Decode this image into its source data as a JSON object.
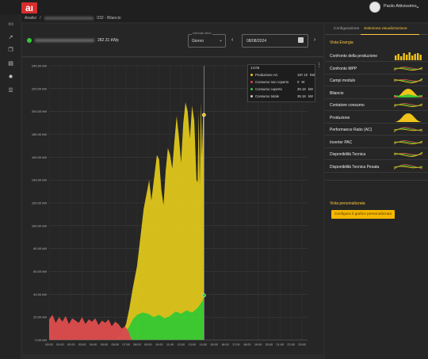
{
  "app": {
    "logo_text": "aı",
    "user_name": "Paolo Attivissimo"
  },
  "breadcrumb": {
    "root": "Analisi",
    "separator": "/",
    "current": "032 - Bilancio"
  },
  "plant": {
    "power": "282.31 kWp",
    "status_color": "#36c936"
  },
  "period_select": {
    "legend": "Intervallo attivo",
    "value": "Giorno"
  },
  "date": {
    "value": "08/08/2024"
  },
  "tabs": [
    {
      "label": "Configurazione",
      "active": false
    },
    {
      "label": "Seleziona visualizzazione",
      "active": true
    }
  ],
  "vista": {
    "title": "Vista Energia",
    "items": [
      {
        "label": "Confronto della produzione",
        "icon": "bar-spark-icon"
      },
      {
        "label": "Confronto MPP",
        "icon": "line-spark-icon"
      },
      {
        "label": "Campi modulo",
        "icon": "line-spark-icon"
      },
      {
        "label": "Bilancio",
        "icon": "area-spark-icon"
      },
      {
        "label": "Contatore consumo",
        "icon": "line-spark-icon"
      },
      {
        "label": "Produzione",
        "icon": "bell-spark-icon"
      },
      {
        "label": "Performance Ratio (AC)",
        "icon": "line-spark-icon"
      },
      {
        "label": "Inverter PAC",
        "icon": "line-spark-icon"
      },
      {
        "label": "Disponibilità Tecnica",
        "icon": "line-spark-icon"
      },
      {
        "label": "Disponibilità Tecnica Pesata",
        "icon": "line-spark-icon"
      }
    ]
  },
  "custom": {
    "title": "Vista personalizzata",
    "button": "Configura il grafico personalizzato"
  },
  "tooltip": {
    "time": "14:05",
    "rows": [
      {
        "label": "Produzione AC",
        "value": "197.10",
        "unit": "kW",
        "color": "#f0c419"
      },
      {
        "label": "Consumo non coperto",
        "value": "0",
        "unit": "W",
        "color": "#e04040"
      },
      {
        "label": "Consumo coperto",
        "value": "39.18",
        "unit": "kW",
        "color": "#3ac832"
      },
      {
        "label": "Consumo totale",
        "value": "39.18",
        "unit": "kW",
        "color": "#cccccc"
      }
    ]
  },
  "colors": {
    "production": "#d9c21c",
    "covered": "#3ac832",
    "uncovered": "#d94d4d",
    "accent": "#ffc83c"
  },
  "chart_data": {
    "type": "area",
    "y_ticks": [
      "0.00 kW",
      "20.00 kW",
      "40.00 kW",
      "60.00 kW",
      "80.00 kW",
      "100.00 kW",
      "120.00 kW",
      "140.00 kW",
      "160.00 kW",
      "180.00 kW",
      "200.00 kW",
      "220.00 kW",
      "240.00 kW"
    ],
    "x_ticks": [
      "00:00",
      "01:00",
      "02:00",
      "03:00",
      "04:00",
      "05:00",
      "06:00",
      "07:00",
      "08:00",
      "09:00",
      "10:00",
      "11:00",
      "12:00",
      "13:00",
      "14:00",
      "15:00",
      "16:00",
      "17:00",
      "18:00",
      "19:00",
      "20:00",
      "21:00",
      "22:00",
      "23:00"
    ],
    "ylim": [
      0,
      240
    ],
    "xlim_hours": [
      0,
      23.5
    ],
    "cursor_hour": 14.08,
    "series": [
      {
        "name": "Produzione AC",
        "x": [
          0,
          1,
          2,
          3,
          4,
          5,
          5.8,
          6.2,
          6.6,
          7.0,
          7.3,
          7.6,
          8.0,
          8.3,
          8.6,
          8.9,
          9.1,
          9.3,
          9.5,
          9.8,
          10.0,
          10.2,
          10.4,
          10.6,
          10.8,
          11.0,
          11.2,
          11.4,
          11.6,
          11.8,
          12.0,
          12.2,
          12.4,
          12.6,
          12.8,
          13.0,
          13.2,
          13.4,
          13.5,
          13.6,
          13.7,
          13.8,
          13.9,
          14.0,
          14.08
        ],
        "values": [
          0,
          0,
          0,
          0,
          0,
          0,
          0,
          2,
          6,
          14,
          28,
          45,
          65,
          90,
          115,
          130,
          140,
          122,
          138,
          162,
          158,
          132,
          118,
          148,
          168,
          162,
          150,
          175,
          196,
          178,
          155,
          190,
          208,
          200,
          176,
          205,
          192,
          140,
          138,
          200,
          135,
          208,
          160,
          196,
          197
        ]
      },
      {
        "name": "Consumo coperto",
        "x": [
          0,
          5.8,
          6.2,
          6.6,
          7.0,
          7.3,
          7.6,
          8.0,
          8.5,
          9.0,
          9.5,
          10.0,
          10.5,
          11.0,
          11.5,
          12.0,
          12.5,
          13.0,
          13.5,
          14.0,
          14.08
        ],
        "values": [
          0,
          0,
          2,
          5,
          8,
          12,
          18,
          22,
          24,
          23,
          20,
          22,
          19,
          21,
          25,
          23,
          26,
          24,
          28,
          35,
          39
        ]
      },
      {
        "name": "Consumo non coperto",
        "x": [
          0,
          0.3,
          0.6,
          0.9,
          1.2,
          1.5,
          1.8,
          2.1,
          2.4,
          2.7,
          3.0,
          3.3,
          3.6,
          3.9,
          4.2,
          4.5,
          4.8,
          5.1,
          5.4,
          5.7,
          6.0,
          6.3,
          6.6,
          6.9,
          7.2,
          7.5
        ],
        "values": [
          18,
          22,
          15,
          20,
          16,
          21,
          14,
          19,
          17,
          15,
          20,
          14,
          18,
          16,
          19,
          13,
          17,
          15,
          18,
          12,
          16,
          14,
          10,
          12,
          8,
          0
        ]
      }
    ]
  }
}
